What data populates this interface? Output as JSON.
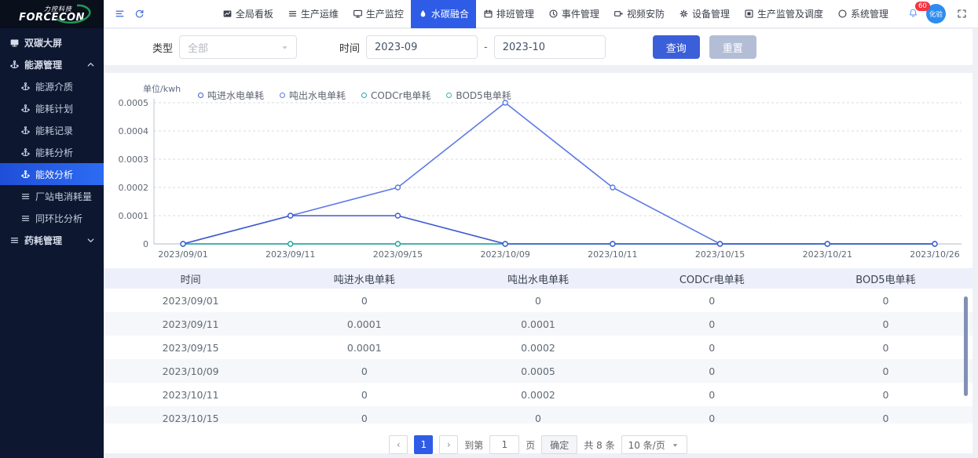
{
  "app": {
    "brand_cn": "力控科技",
    "brand_en": "FORCECON"
  },
  "top_nav": {
    "tools": [
      {
        "icon": "collapse-menu"
      },
      {
        "icon": "refresh"
      }
    ],
    "items": [
      {
        "label": "全局看板",
        "icon": "dashboard",
        "active": false
      },
      {
        "label": "生产运维",
        "icon": "list",
        "active": false
      },
      {
        "label": "生产监控",
        "icon": "monitor",
        "active": false
      },
      {
        "label": "水碳融合",
        "icon": "water-drop",
        "active": true
      },
      {
        "label": "排班管理",
        "icon": "calendar",
        "active": false
      },
      {
        "label": "事件管理",
        "icon": "event",
        "active": false
      },
      {
        "label": "视频安防",
        "icon": "video",
        "active": false
      },
      {
        "label": "设备管理",
        "icon": "gear",
        "active": false
      },
      {
        "label": "生产监管及调度",
        "icon": "supervise",
        "active": false
      },
      {
        "label": "系统管理",
        "icon": "system",
        "active": false
      }
    ],
    "notification_count": "60",
    "avatar_text": "化验"
  },
  "sidebar": {
    "items": [
      {
        "label": "双碳大屏",
        "icon": "screen",
        "level": 1,
        "active": false,
        "chevron": ""
      },
      {
        "label": "能源管理",
        "icon": "anchor",
        "level": 1,
        "active": false,
        "chevron": "up"
      },
      {
        "label": "能源介质",
        "icon": "anchor",
        "level": 2,
        "active": false,
        "chevron": ""
      },
      {
        "label": "能耗计划",
        "icon": "anchor",
        "level": 2,
        "active": false,
        "chevron": ""
      },
      {
        "label": "能耗记录",
        "icon": "anchor",
        "level": 2,
        "active": false,
        "chevron": ""
      },
      {
        "label": "能耗分析",
        "icon": "anchor",
        "level": 2,
        "active": false,
        "chevron": ""
      },
      {
        "label": "能效分析",
        "icon": "anchor",
        "level": 2,
        "active": true,
        "chevron": ""
      },
      {
        "label": "厂站电消耗量",
        "icon": "list",
        "level": 2,
        "active": false,
        "chevron": ""
      },
      {
        "label": "同环比分析",
        "icon": "list",
        "level": 2,
        "active": false,
        "chevron": ""
      },
      {
        "label": "药耗管理",
        "icon": "list",
        "level": 1,
        "active": false,
        "chevron": "down"
      }
    ]
  },
  "filters": {
    "type_label": "类型",
    "type_value": "全部",
    "time_label": "时间",
    "time_from": "2023-09",
    "time_to": "2023-10",
    "separator": "-",
    "query_label": "查询",
    "reset_label": "重置"
  },
  "chart_data": {
    "type": "line",
    "unit_label": "单位/kwh",
    "categories": [
      "2023/09/01",
      "2023/09/11",
      "2023/09/15",
      "2023/10/09",
      "2023/10/11",
      "2023/10/15",
      "2023/10/21",
      "2023/10/26"
    ],
    "series": [
      {
        "name": "吨进水电单耗",
        "color": "#3f5bd0",
        "values": [
          0,
          0.0001,
          0.0001,
          0,
          0,
          0,
          0,
          0
        ]
      },
      {
        "name": "吨出水电单耗",
        "color": "#5c79e6",
        "values": [
          0,
          0.0001,
          0.0002,
          0.0005,
          0.0002,
          0,
          0,
          0
        ]
      },
      {
        "name": "CODCr电单耗",
        "color": "#2aa7a3",
        "values": [
          0,
          0,
          0,
          0,
          0,
          0,
          0,
          0
        ]
      },
      {
        "name": "BOD5电单耗",
        "color": "#38b6a6",
        "values": [
          0,
          0,
          0,
          0,
          0,
          0,
          0,
          0
        ]
      }
    ],
    "ylim": [
      0,
      0.0005
    ],
    "yticks": [
      "0.0005",
      "0.0004",
      "0.0003",
      "0.0002",
      "0.0001",
      "0"
    ],
    "grid": true,
    "legend_position": "top"
  },
  "table": {
    "columns": [
      "时间",
      "吨进水电单耗",
      "吨出水电单耗",
      "CODCr电单耗",
      "BOD5电单耗"
    ],
    "rows": [
      [
        "2023/09/01",
        "0",
        "0",
        "0",
        "0"
      ],
      [
        "2023/09/11",
        "0.0001",
        "0.0001",
        "0",
        "0"
      ],
      [
        "2023/09/15",
        "0.0001",
        "0.0002",
        "0",
        "0"
      ],
      [
        "2023/10/09",
        "0",
        "0.0005",
        "0",
        "0"
      ],
      [
        "2023/10/11",
        "0",
        "0.0002",
        "0",
        "0"
      ],
      [
        "2023/10/15",
        "0",
        "0",
        "0",
        "0"
      ]
    ]
  },
  "pagination": {
    "prev": "‹",
    "next": "›",
    "current_page": "1",
    "goto_prefix": "到第",
    "goto_value": "1",
    "goto_suffix": "页",
    "confirm_label": "确定",
    "total_label": "共 8 条",
    "page_size_label": "10 条/页"
  }
}
